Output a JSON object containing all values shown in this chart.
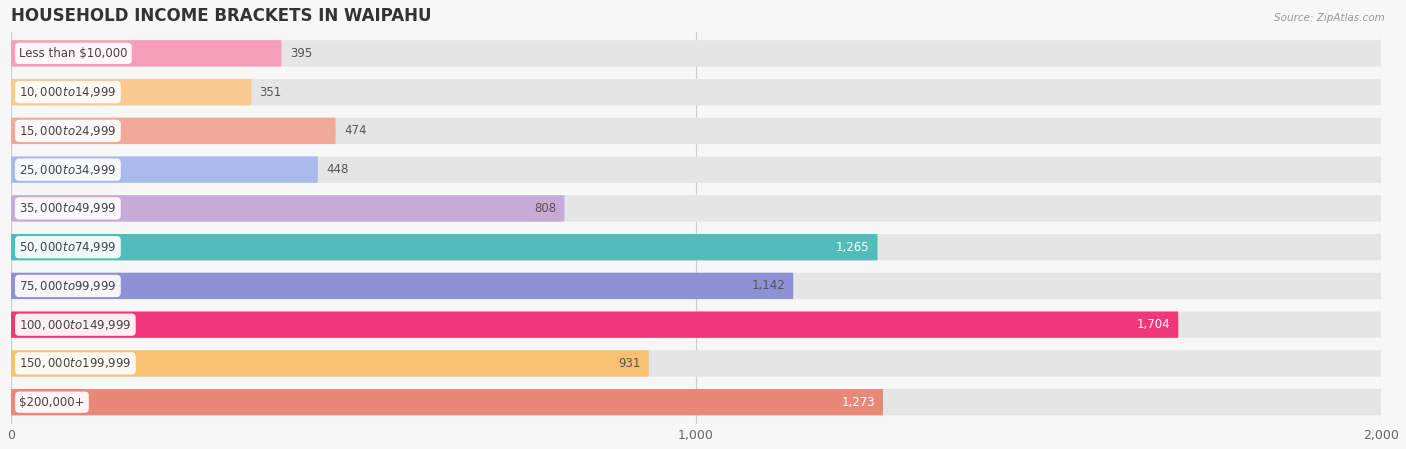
{
  "title": "HOUSEHOLD INCOME BRACKETS IN WAIPAHU",
  "source": "Source: ZipAtlas.com",
  "categories": [
    "Less than $10,000",
    "$10,000 to $14,999",
    "$15,000 to $24,999",
    "$25,000 to $34,999",
    "$35,000 to $49,999",
    "$50,000 to $74,999",
    "$75,000 to $99,999",
    "$100,000 to $149,999",
    "$150,000 to $199,999",
    "$200,000+"
  ],
  "values": [
    395,
    351,
    474,
    448,
    808,
    1265,
    1142,
    1704,
    931,
    1273
  ],
  "bar_colors": [
    "#f5a0b8",
    "#f8ca90",
    "#f2a898",
    "#aabaea",
    "#c8aad8",
    "#52bcb8",
    "#9090d5",
    "#f03878",
    "#f5c070",
    "#e88878"
  ],
  "value_label_colors": [
    "#555555",
    "#555555",
    "#555555",
    "#555555",
    "#555555",
    "#ffffff",
    "#555555",
    "#ffffff",
    "#555555",
    "#ffffff"
  ],
  "xlim": [
    0,
    2000
  ],
  "xticks": [
    0,
    1000,
    2000
  ],
  "background_color": "#f7f7f7",
  "bar_bg_color": "#e5e5e5",
  "title_fontsize": 12,
  "label_fontsize": 8.5,
  "value_fontsize": 8.5,
  "bar_height": 0.68,
  "bar_spacing": 1.0
}
